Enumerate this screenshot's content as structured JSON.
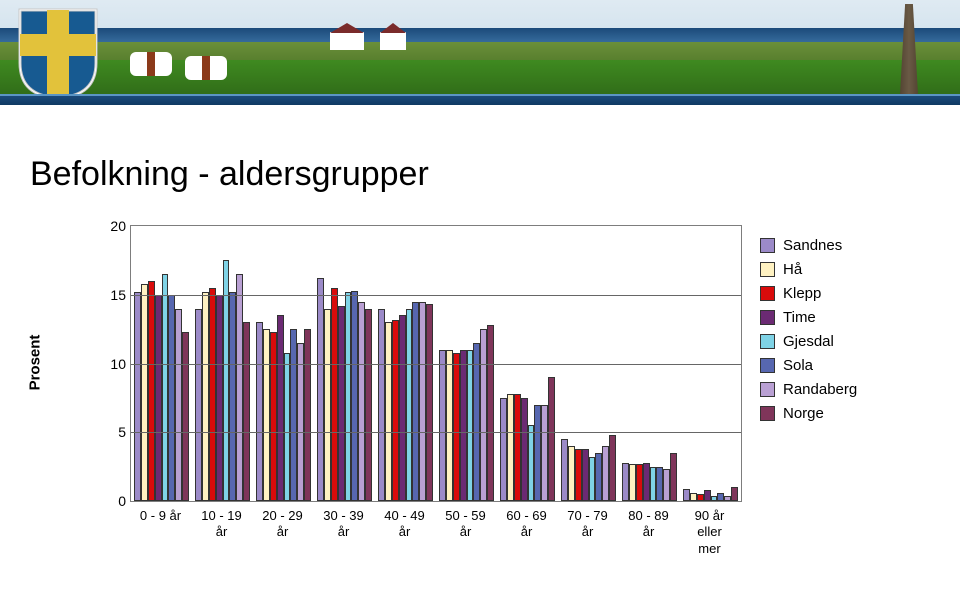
{
  "page": {
    "title": "Befolkning - aldersgrupper"
  },
  "chart": {
    "type": "bar",
    "orientation": "grouped",
    "ylabel": "Prosent",
    "ylim_min": 0,
    "ylim_max": 20,
    "yticks": [
      0,
      5,
      10,
      15,
      20
    ],
    "categories": [
      "0 - 9 år",
      "10 - 19\når",
      "20 - 29\når",
      "30 - 39\når",
      "40 - 49\når",
      "50 - 59\når",
      "60 - 69\når",
      "70 - 79\når",
      "80 - 89\når",
      "90 år\neller\nmer"
    ],
    "series": [
      {
        "name": "Sandnes",
        "color": "#9b8ac8",
        "values": [
          15.2,
          14.0,
          13.0,
          16.2,
          14.0,
          11.0,
          7.5,
          4.5,
          2.8,
          0.9
        ]
      },
      {
        "name": "Hå",
        "color": "#fff2c2",
        "values": [
          15.8,
          15.2,
          12.5,
          14.0,
          13.0,
          11.0,
          7.8,
          4.0,
          2.7,
          0.6
        ]
      },
      {
        "name": "Klepp",
        "color": "#d90b0b",
        "values": [
          16.0,
          15.5,
          12.3,
          15.5,
          13.2,
          10.8,
          7.8,
          3.8,
          2.7,
          0.5
        ]
      },
      {
        "name": "Time",
        "color": "#6b2a73",
        "values": [
          15.0,
          15.0,
          13.5,
          14.2,
          13.5,
          11.0,
          7.5,
          3.8,
          2.8,
          0.8
        ]
      },
      {
        "name": "Gjesdal",
        "color": "#7fd3e6",
        "values": [
          16.5,
          17.5,
          10.8,
          15.2,
          14.0,
          11.0,
          5.5,
          3.2,
          2.5,
          0.4
        ]
      },
      {
        "name": "Sola",
        "color": "#5767b0",
        "values": [
          15.0,
          15.2,
          12.5,
          15.3,
          14.5,
          11.5,
          7.0,
          3.5,
          2.5,
          0.6
        ]
      },
      {
        "name": "Randaberg",
        "color": "#b9a0d3",
        "values": [
          14.0,
          16.5,
          11.5,
          14.5,
          14.5,
          12.5,
          7.0,
          4.0,
          2.3,
          0.4
        ]
      },
      {
        "name": "Norge",
        "color": "#7f355a",
        "values": [
          12.3,
          13.0,
          12.5,
          14.0,
          14.3,
          12.8,
          9.0,
          4.8,
          3.5,
          1.0
        ]
      }
    ],
    "border_color": "#7d7d7d",
    "grid_color": "#666666",
    "background_color": "#ffffff",
    "axis_fontsize": 14,
    "label_fontsize": 13,
    "bar_border": "#333333"
  },
  "banner": {
    "shield_base": "#175a91",
    "shield_cross": "#e2c23b",
    "stripe_color": "#1b4a7a"
  }
}
